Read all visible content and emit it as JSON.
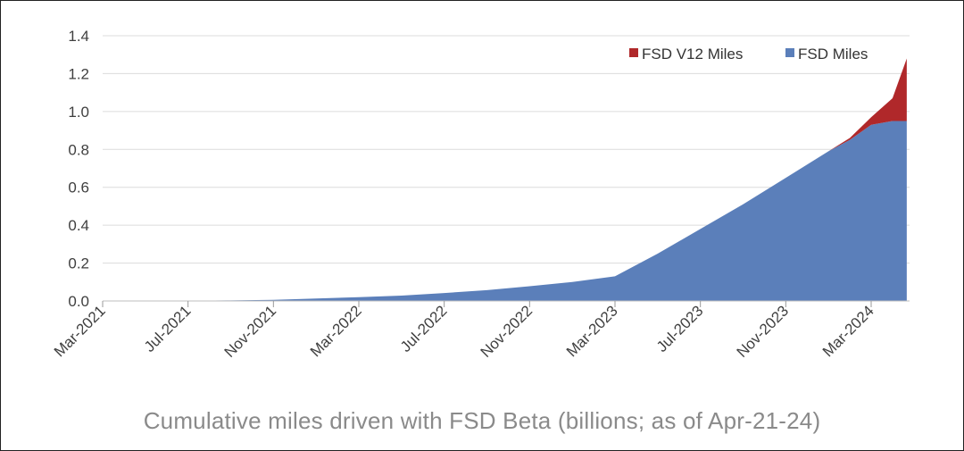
{
  "chart_data": {
    "type": "area",
    "stacked": true,
    "title": "Cumulative miles driven with FSD Beta (billions; as of Apr-21-24)",
    "ylim": [
      0,
      1.4
    ],
    "yticks": [
      "0.0",
      "0.2",
      "0.4",
      "0.6",
      "0.8",
      "1.0",
      "1.2",
      "1.4"
    ],
    "xticks": [
      "Mar-2021",
      "Jul-2021",
      "Nov-2021",
      "Mar-2022",
      "Jul-2022",
      "Nov-2022",
      "Mar-2023",
      "Jul-2023",
      "Nov-2023",
      "Mar-2024"
    ],
    "grid": true,
    "legend_position": "top-right",
    "x": [
      "2021-03",
      "2021-05",
      "2021-07",
      "2021-09",
      "2021-11",
      "2022-01",
      "2022-03",
      "2022-05",
      "2022-07",
      "2022-09",
      "2022-11",
      "2023-01",
      "2023-03",
      "2023-05",
      "2023-07",
      "2023-09",
      "2023-11",
      "2024-01",
      "2024-02",
      "2024-03",
      "2024-04",
      "2024-04-21"
    ],
    "series": [
      {
        "name": "FSD Miles",
        "color": "#5b7fba",
        "values": [
          0.0,
          0.0,
          0.001,
          0.003,
          0.006,
          0.013,
          0.02,
          0.028,
          0.042,
          0.057,
          0.078,
          0.1,
          0.13,
          0.25,
          0.38,
          0.51,
          0.65,
          0.79,
          0.85,
          0.93,
          0.95,
          0.95
        ]
      },
      {
        "name": "FSD V12 Miles",
        "color": "#b0282a",
        "values": [
          0,
          0,
          0,
          0,
          0,
          0,
          0,
          0,
          0,
          0,
          0,
          0,
          0,
          0,
          0,
          0,
          0,
          0,
          0.01,
          0.04,
          0.12,
          0.33
        ]
      }
    ]
  }
}
